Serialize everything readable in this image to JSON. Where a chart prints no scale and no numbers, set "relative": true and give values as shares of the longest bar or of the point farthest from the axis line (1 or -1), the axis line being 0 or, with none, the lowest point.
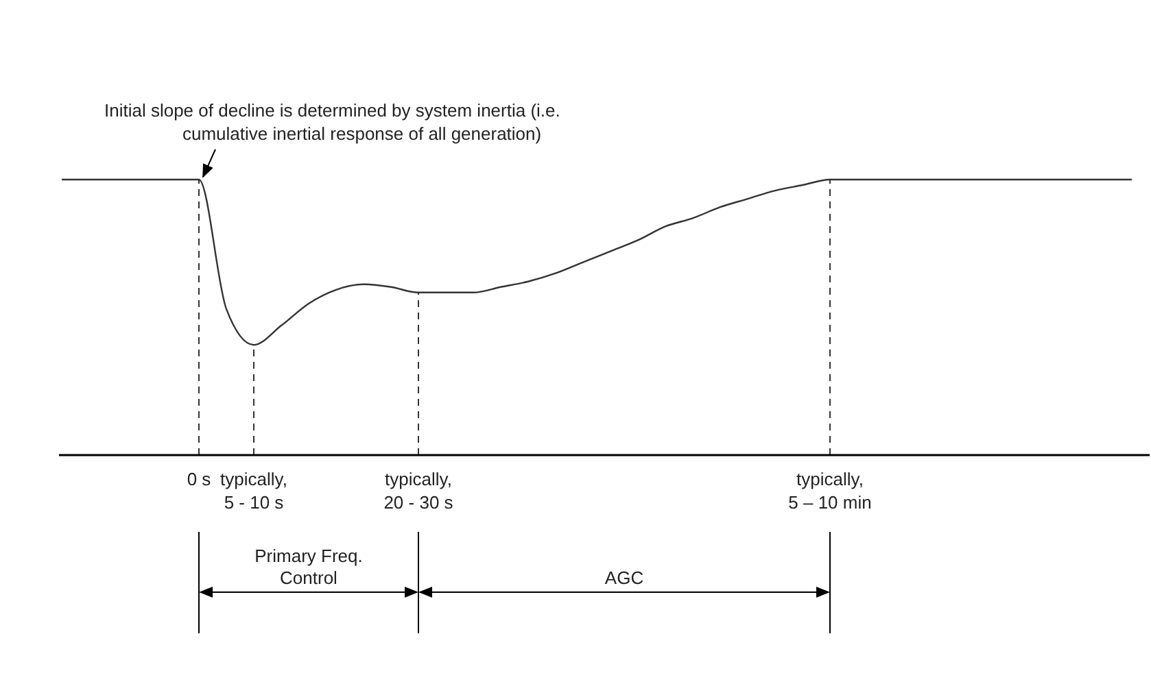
{
  "chart_data": {
    "type": "line",
    "relative": true,
    "marker": "none",
    "line_style": "solid",
    "categories": [
      null,
      null,
      null,
      null,
      null,
      "0 s",
      null,
      "typically, 5 - 10 s",
      null,
      null,
      null,
      null,
      null,
      "typically, 20 - 30 s",
      null,
      null,
      null,
      null,
      null,
      null,
      null,
      null,
      null,
      null,
      null,
      null,
      null,
      null,
      "typically, 5 – 10 min",
      null,
      null,
      null,
      null,
      null,
      null,
      null,
      null,
      null,
      null,
      null
    ],
    "series": [
      {
        "color": "#333333",
        "values": [
          1,
          1,
          1,
          1,
          1,
          1,
          0.53,
          0.4,
          0.47,
          0.55,
          0.6,
          0.62,
          0.61,
          0.59,
          0.59,
          0.59,
          0.61,
          0.63,
          0.66,
          0.7,
          0.74,
          0.78,
          0.83,
          0.86,
          0.9,
          0.93,
          0.96,
          0.98,
          1,
          1,
          1,
          1,
          1,
          1,
          1,
          1,
          1,
          1,
          1,
          1
        ]
      }
    ],
    "ref_lines": [
      {
        "axis": "x",
        "value": "0 s",
        "line_style": "dashed"
      },
      {
        "axis": "x",
        "value": "typically, 5 - 10 s",
        "line_style": "dashed"
      },
      {
        "axis": "x",
        "value": "typically, 20 - 30 s",
        "line_style": "dashed"
      },
      {
        "axis": "x",
        "value": "typically, 5 – 10 min",
        "line_style": "dashed"
      }
    ],
    "annotations": [
      {
        "text": "Initial slope of decline is determined by system inertia (i.e. cumulative inertial response of all generation)",
        "x": "0 s",
        "y": 1
      },
      "Primary Freq. Control",
      "AGC"
    ]
  }
}
